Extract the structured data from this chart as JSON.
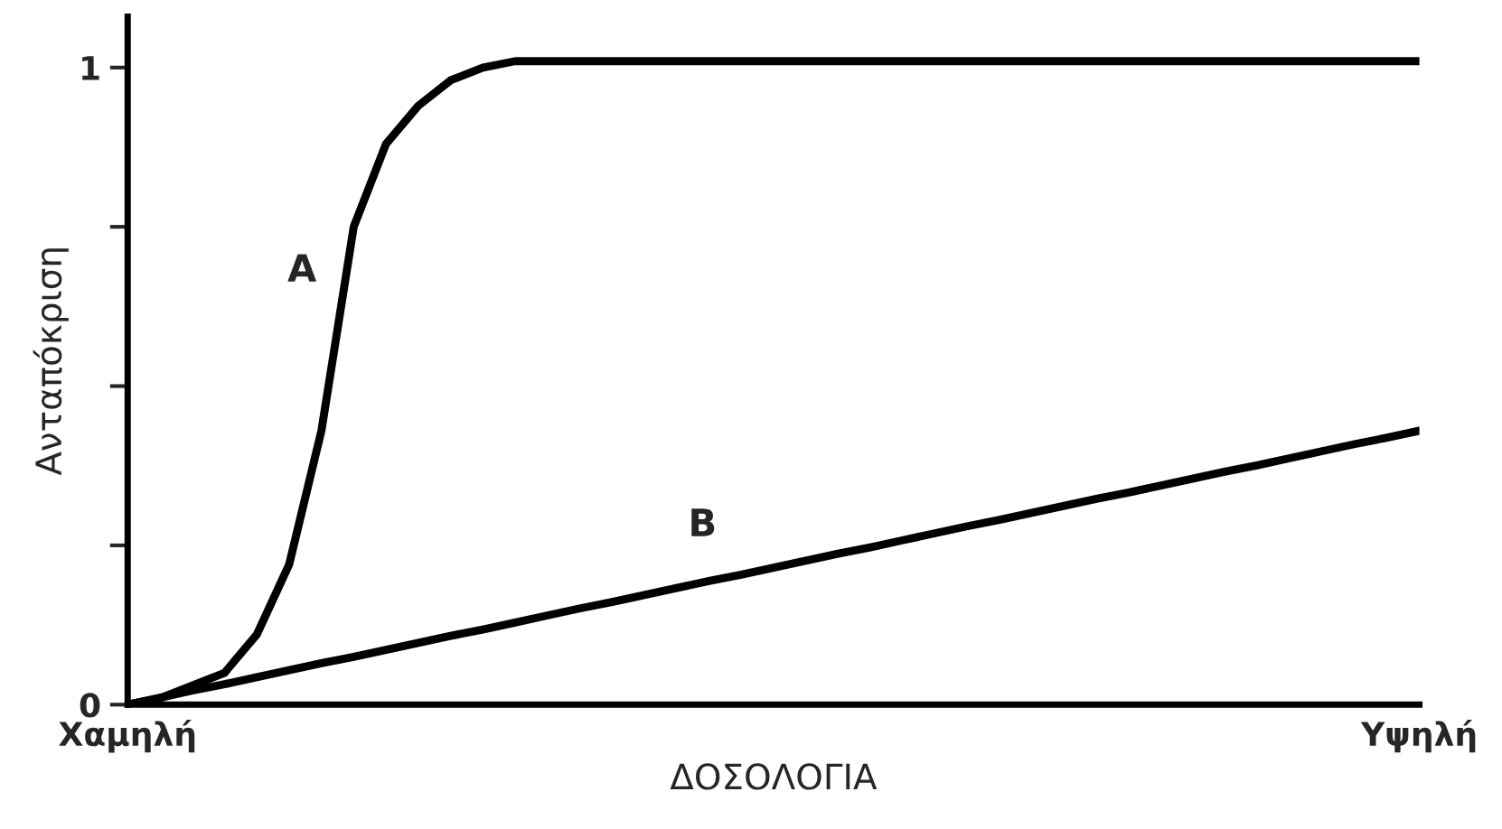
{
  "chart_data": {
    "type": "line",
    "xlabel": "ΔΟΣΟΛΟΓΙΑ",
    "ylabel": "Ανταπόκριση",
    "categories": [
      "Χαμηλή",
      null,
      null,
      null,
      null,
      null,
      null,
      null,
      null,
      null,
      null,
      null,
      null,
      null,
      null,
      null,
      null,
      null,
      null,
      null,
      null,
      null,
      null,
      null,
      null,
      null,
      null,
      null,
      null,
      null,
      null,
      null,
      null,
      null,
      null,
      null,
      null,
      null,
      null,
      null,
      "Υψηλή"
    ],
    "ylim": [
      0,
      1.08
    ],
    "yticks": [
      0,
      {
        "value": 0.25,
        "label": null
      },
      {
        "value": 0.5,
        "label": null
      },
      {
        "value": 0.75,
        "label": null
      },
      1
    ],
    "series": [
      {
        "color": "#000000",
        "values": [
          0,
          0.01,
          0.03,
          0.05,
          0.11,
          0.22,
          0.43,
          0.75,
          0.88,
          0.94,
          0.98,
          1.0,
          1.01,
          1.01,
          1.01,
          1.01,
          1.01,
          1.01,
          1.01,
          1.01,
          1.01,
          1.01,
          1.01,
          1.01,
          1.01,
          1.01,
          1.01,
          1.01,
          1.01,
          1.01,
          1.01,
          1.01,
          1.01,
          1.01,
          1.01,
          1.01,
          1.01,
          1.01,
          1.01,
          1.01,
          1.01
        ]
      },
      {
        "color": "#000000",
        "values": [
          0,
          0.011,
          0.022,
          0.032,
          0.043,
          0.054,
          0.065,
          0.075,
          0.086,
          0.097,
          0.108,
          0.118,
          0.129,
          0.14,
          0.151,
          0.161,
          0.172,
          0.183,
          0.194,
          0.204,
          0.215,
          0.226,
          0.237,
          0.247,
          0.258,
          0.269,
          0.28,
          0.29,
          0.301,
          0.312,
          0.323,
          0.333,
          0.344,
          0.355,
          0.366,
          0.376,
          0.387,
          0.398,
          0.409,
          0.419,
          0.43
        ]
      }
    ],
    "annotations": [
      "A",
      "B"
    ],
    "grid": false,
    "legend": false,
    "marker": "none",
    "line_style": "solid"
  }
}
